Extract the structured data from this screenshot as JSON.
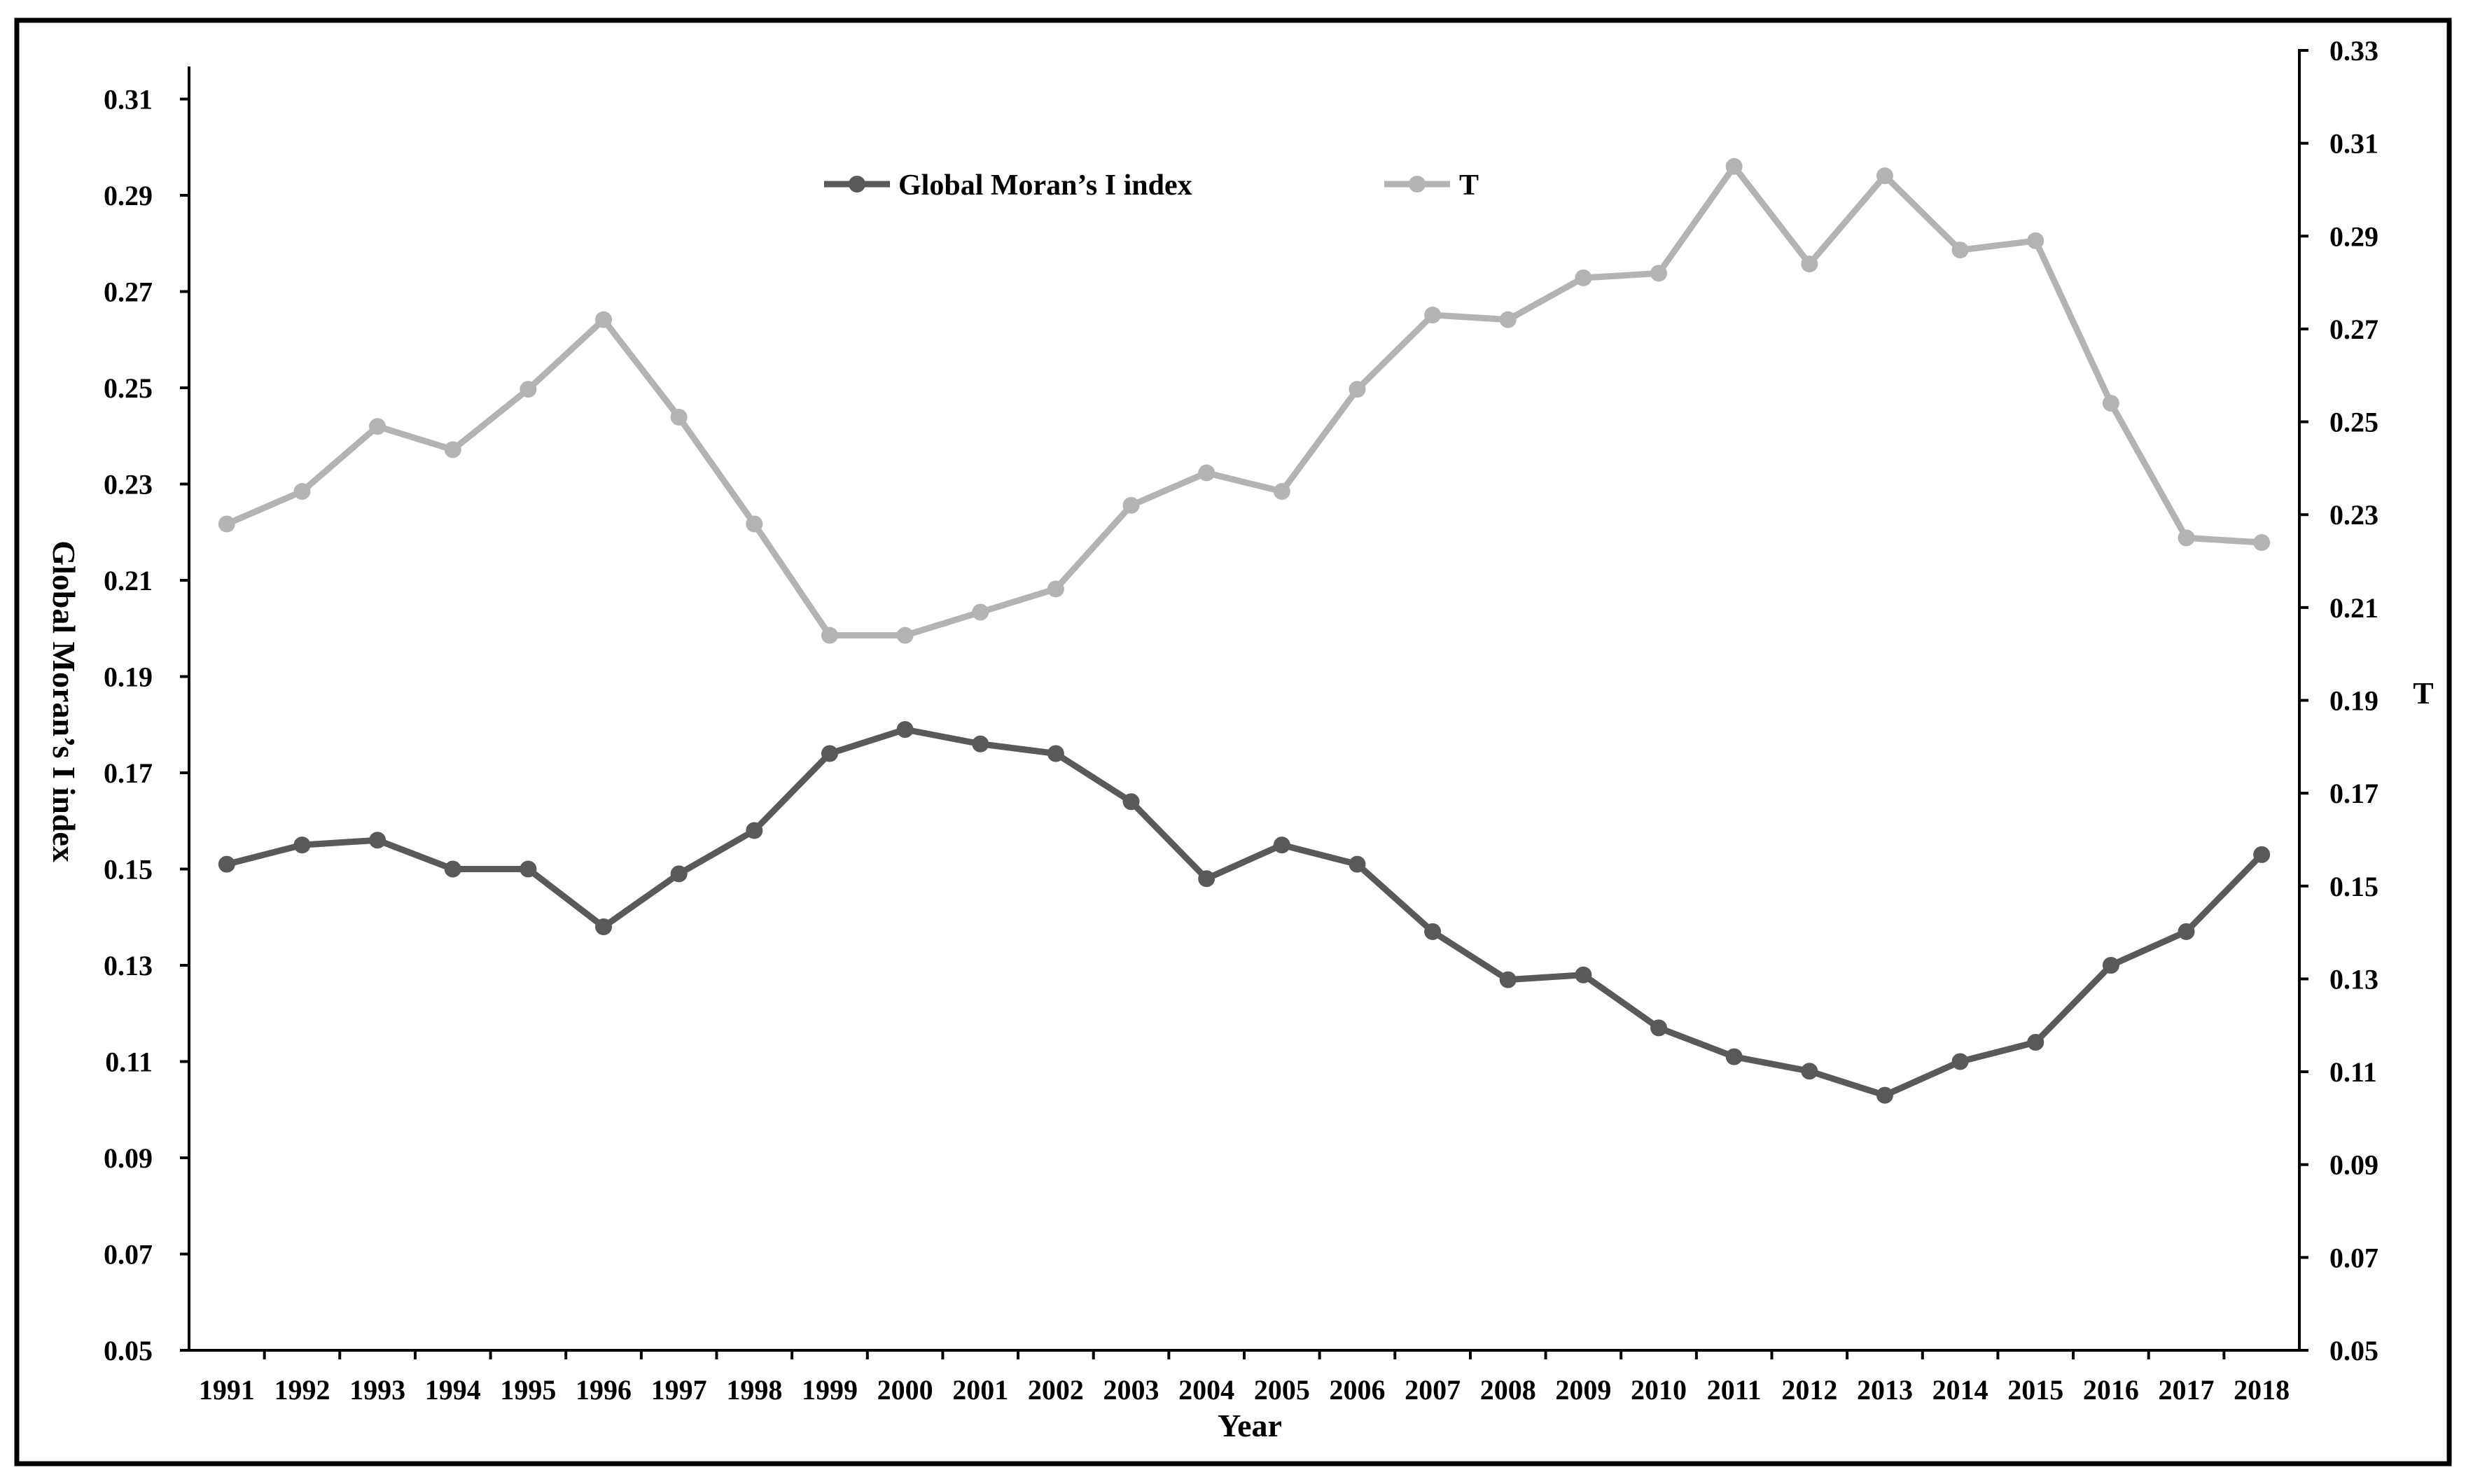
{
  "chart_data": {
    "type": "line",
    "title": "",
    "xlabel": "Year",
    "ylabel": "Global Moran’s I index",
    "y2label": "T",
    "categories": [
      "1991",
      "1992",
      "1993",
      "1994",
      "1995",
      "1996",
      "1997",
      "1998",
      "1999",
      "2000",
      "2001",
      "2002",
      "2003",
      "2004",
      "2005",
      "2006",
      "2007",
      "2008",
      "2009",
      "2010",
      "2011",
      "2012",
      "2013",
      "2014",
      "2015",
      "2016",
      "2017",
      "2018"
    ],
    "ylim": [
      0.05,
      0.31
    ],
    "y2lim": [
      0.05,
      0.33
    ],
    "yticks": [
      "0.05",
      "0.07",
      "0.09",
      "0.11",
      "0.13",
      "0.15",
      "0.17",
      "0.19",
      "0.21",
      "0.23",
      "0.25",
      "0.27",
      "0.29",
      "0.31"
    ],
    "y2ticks": [
      "0.05",
      "0.07",
      "0.09",
      "0.11",
      "0.13",
      "0.15",
      "0.17",
      "0.19",
      "0.21",
      "0.23",
      "0.25",
      "0.27",
      "0.29",
      "0.31",
      "0.33"
    ],
    "grid": false,
    "legend_position": "top-center",
    "series": [
      {
        "name": "Global Moran’s I index",
        "axis": "left",
        "color": "#595959",
        "values": [
          0.151,
          0.155,
          0.156,
          0.15,
          0.15,
          0.138,
          0.149,
          0.158,
          0.174,
          0.179,
          0.176,
          0.174,
          0.164,
          0.148,
          0.155,
          0.151,
          0.137,
          0.127,
          0.128,
          0.117,
          0.111,
          0.108,
          0.103,
          0.11,
          0.114,
          0.13,
          0.137,
          0.153
        ]
      },
      {
        "name": "T",
        "axis": "right",
        "color": "#b3b3b3",
        "values": [
          0.228,
          0.235,
          0.249,
          0.244,
          0.257,
          0.272,
          0.251,
          0.228,
          0.204,
          0.204,
          0.209,
          0.214,
          0.232,
          0.239,
          0.235,
          0.257,
          0.273,
          0.272,
          0.281,
          0.282,
          0.305,
          0.284,
          0.303,
          0.287,
          0.289,
          0.254,
          0.225,
          0.224
        ]
      }
    ]
  }
}
